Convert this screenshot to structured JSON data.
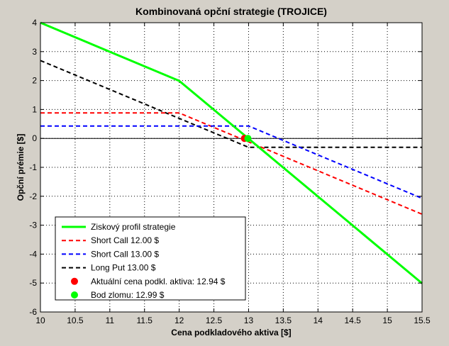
{
  "chart_data": {
    "type": "line",
    "title": "Kombinovaná opční strategie (TROJICE)",
    "xlabel": "Cena podkladového aktiva [$]",
    "ylabel": "Opční prémie [$]",
    "xlim": [
      10,
      15.5
    ],
    "ylim": [
      -6,
      4
    ],
    "grid": true,
    "legend_position": "bottom-left",
    "xticks": [
      10,
      10.5,
      11,
      11.5,
      12,
      12.5,
      13,
      13.5,
      14,
      14.5,
      15,
      15.5
    ],
    "xtick_labels": [
      "10",
      "10.5",
      "11",
      "11.5",
      "12",
      "12.5",
      "13",
      "13.5",
      "14",
      "14.5",
      "15",
      "15.5"
    ],
    "yticks": [
      4,
      3,
      2,
      1,
      0,
      -1,
      -2,
      -3,
      -4,
      -5,
      -6
    ],
    "ytick_labels": [
      "4",
      "3",
      "2",
      "1",
      "0",
      "-1",
      "-2",
      "-3",
      "-4",
      "-5",
      "-6"
    ],
    "zero_line": 0,
    "series": [
      {
        "name": "Ziskový profil strategie",
        "color": "#00ff00",
        "dash": "solid",
        "x": [
          10,
          12,
          13,
          15.5
        ],
        "y": [
          4.0,
          1.99,
          -0.01,
          -5.01
        ]
      },
      {
        "name": "Short Call  12.00 $",
        "color": "#ff0000",
        "dash": "dashed",
        "x": [
          10,
          12,
          15.5
        ],
        "y": [
          0.88,
          0.88,
          -2.62
        ]
      },
      {
        "name": "Short Call  13.00 $",
        "color": "#0000ff",
        "dash": "dashed",
        "x": [
          10,
          13,
          15.5
        ],
        "y": [
          0.43,
          0.43,
          -2.07
        ]
      },
      {
        "name": "Long Put  13.00 $",
        "color": "#000000",
        "dash": "dashed",
        "x": [
          10,
          13,
          15.5
        ],
        "y": [
          2.69,
          -0.31,
          -0.31
        ]
      }
    ],
    "markers": [
      {
        "name": "Aktuální cena podkl. aktiva:  12.94 $",
        "color": "#ff0000",
        "x": 12.94,
        "y": 0.0
      },
      {
        "name": "Bod zlomu:  12.99 $",
        "color": "#00ff00",
        "x": 12.99,
        "y": 0.0
      }
    ]
  }
}
